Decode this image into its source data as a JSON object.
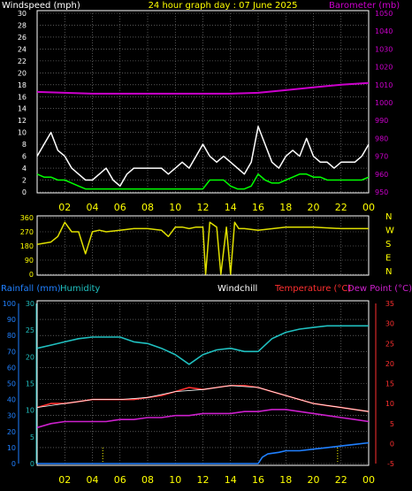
{
  "header": {
    "windspeed_label": "Windspeed (mph)",
    "title": "24 hour graph day : 07 June 2025",
    "barometer_label": "Barometer (mb)"
  },
  "panel3_labels": {
    "rainfall": "Rainfall (mm)",
    "humidity": "Humidity",
    "windchill": "Windchill",
    "temperature": "Temperature (°C)",
    "dewpoint": "Dew Point (°C)"
  },
  "colors": {
    "background": "#000000",
    "axis_yellow": "#ffff00",
    "wind_gust": "#ffffff",
    "wind_avg": "#00ff00",
    "barometer": "#cc00cc",
    "direction": "#e0e000",
    "humidity": "#20c0c0",
    "temperature": "#ff3030",
    "dewpoint": "#cc20cc",
    "windchill": "#ffffff",
    "rainfall": "#2080ff",
    "grid": "#8a8a8a"
  },
  "chart_data": [
    {
      "type": "line",
      "name": "wind-barometer",
      "x_ticks": [
        "02",
        "04",
        "06",
        "08",
        "10",
        "12",
        "14",
        "16",
        "18",
        "20",
        "22",
        "00"
      ],
      "xlim": [
        0,
        24
      ],
      "y_left": {
        "label": "Windspeed (mph)",
        "ticks": [
          0,
          2,
          4,
          6,
          8,
          10,
          12,
          14,
          16,
          18,
          20,
          22,
          24,
          26,
          28,
          30
        ],
        "ylim": [
          0,
          30
        ]
      },
      "y_right": {
        "label": "Barometer (mb)",
        "ticks": [
          950,
          960,
          970,
          980,
          990,
          1000,
          1010,
          1020,
          1030,
          1040,
          1050
        ],
        "ylim": [
          950,
          1050
        ]
      },
      "series": [
        {
          "key": "gust",
          "axis": "left",
          "x": [
            0,
            0.5,
            1,
            1.5,
            2,
            2.5,
            3,
            3.5,
            4,
            4.5,
            5,
            5.5,
            6,
            6.5,
            7,
            7.5,
            8,
            8.5,
            9,
            9.5,
            10,
            10.5,
            11,
            11.5,
            12,
            12.5,
            13,
            13.5,
            14,
            14.5,
            15,
            15.5,
            16,
            16.5,
            17,
            17.5,
            18,
            18.5,
            19,
            19.5,
            20,
            20.5,
            21,
            21.5,
            22,
            22.5,
            23,
            23.5,
            24
          ],
          "y": [
            6,
            8,
            10,
            7,
            6,
            4,
            3,
            2,
            2,
            3,
            4,
            2,
            1,
            3,
            4,
            4,
            4,
            4,
            4,
            3,
            4,
            5,
            4,
            6,
            8,
            6,
            5,
            6,
            5,
            4,
            3,
            5,
            11,
            8,
            5,
            4,
            6,
            7,
            6,
            9,
            6,
            5,
            5,
            4,
            5,
            5,
            5,
            6,
            8
          ]
        },
        {
          "key": "avg",
          "axis": "left",
          "x": [
            0,
            0.5,
            1,
            1.5,
            2,
            2.5,
            3,
            3.5,
            4,
            4.5,
            5,
            5.5,
            6,
            6.5,
            7,
            7.5,
            8,
            8.5,
            9,
            9.5,
            10,
            10.5,
            11,
            11.5,
            12,
            12.5,
            13,
            13.5,
            14,
            14.5,
            15,
            15.5,
            16,
            16.5,
            17,
            17.5,
            18,
            18.5,
            19,
            19.5,
            20,
            20.5,
            21,
            21.5,
            22,
            22.5,
            23,
            23.5,
            24
          ],
          "y": [
            3,
            2.5,
            2.5,
            2,
            2,
            1.5,
            1,
            0.5,
            0.5,
            0.5,
            0.5,
            0.5,
            0.5,
            0.5,
            0.5,
            0.5,
            0.5,
            0.5,
            0.5,
            0.5,
            0.5,
            0.5,
            0.5,
            0.5,
            0.5,
            2,
            2,
            2,
            1,
            0.5,
            0.5,
            1,
            3,
            2,
            1.5,
            1.5,
            2,
            2.5,
            3,
            3,
            2.5,
            2.5,
            2,
            2,
            2,
            2,
            2,
            2,
            2.5
          ]
        },
        {
          "key": "barometer",
          "axis": "right",
          "x": [
            0,
            2,
            4,
            6,
            8,
            10,
            12,
            14,
            16,
            18,
            20,
            22,
            24
          ],
          "y": [
            1006,
            1005.5,
            1005,
            1005,
            1005,
            1005,
            1005,
            1005,
            1005.5,
            1007,
            1008.5,
            1010,
            1011
          ]
        }
      ]
    },
    {
      "type": "line",
      "name": "wind-direction",
      "xlim": [
        0,
        24
      ],
      "y_left": {
        "ticks": [
          0,
          90,
          180,
          270,
          360
        ],
        "ylim": [
          0,
          360
        ]
      },
      "y_right_labels": [
        "N",
        "W",
        "S",
        "E",
        "N"
      ],
      "series": [
        {
          "key": "direction",
          "x": [
            0,
            1,
            1.5,
            2,
            2.5,
            3,
            3.5,
            4,
            4.5,
            5,
            6,
            7,
            8,
            9,
            9.5,
            10,
            10.5,
            11,
            11.5,
            12,
            12.2,
            12.5,
            13,
            13.3,
            13.7,
            14,
            14.3,
            14.6,
            15,
            16,
            18,
            20,
            22,
            24
          ],
          "y": [
            190,
            205,
            240,
            330,
            270,
            270,
            130,
            270,
            280,
            270,
            280,
            290,
            290,
            280,
            240,
            300,
            300,
            290,
            300,
            300,
            0,
            330,
            300,
            0,
            300,
            0,
            330,
            290,
            290,
            280,
            300,
            300,
            290,
            290
          ]
        }
      ]
    },
    {
      "type": "line",
      "name": "temperature-humidity-rain",
      "x_ticks": [
        "02",
        "04",
        "06",
        "08",
        "10",
        "12",
        "14",
        "16",
        "18",
        "20",
        "22",
        "00"
      ],
      "xlim": [
        0,
        24
      ],
      "y_left_outer": {
        "label": "Rainfall (mm)",
        "ticks": [
          0,
          10,
          20,
          30,
          40,
          50,
          60,
          70,
          80,
          90,
          100
        ],
        "ylim": [
          0,
          100
        ]
      },
      "y_left_inner": {
        "label": "Humidity",
        "ticks": [
          0,
          5,
          10,
          15,
          20,
          25,
          30
        ],
        "ylim": [
          0,
          30
        ]
      },
      "y_right": {
        "label": "Temperature (°C)",
        "ticks": [
          -5,
          0,
          5,
          10,
          15,
          20,
          25,
          30,
          35
        ],
        "ylim": [
          -5,
          35
        ]
      },
      "series": [
        {
          "key": "humidity",
          "axis": "rainfall",
          "x": [
            0,
            1,
            2,
            3,
            4,
            5,
            6,
            7,
            8,
            9,
            10,
            11,
            12,
            13,
            14,
            15,
            16,
            17,
            18,
            19,
            20,
            21,
            22,
            23,
            24
          ],
          "y": [
            72,
            74,
            76,
            78,
            79,
            79,
            79,
            76,
            75,
            72,
            68,
            62,
            68,
            71,
            72,
            70,
            70,
            78,
            82,
            84,
            85,
            86,
            86,
            86,
            86
          ]
        },
        {
          "key": "temperature",
          "axis": "temp",
          "x": [
            0,
            1,
            2,
            3,
            4,
            5,
            6,
            7,
            8,
            9,
            10,
            11,
            12,
            13,
            14,
            15,
            16,
            17,
            18,
            19,
            20,
            21,
            22,
            23,
            24
          ],
          "y": [
            9,
            10,
            10,
            10.5,
            11,
            11,
            11,
            11,
            11.5,
            12,
            13,
            14,
            13.5,
            14,
            14.5,
            14.5,
            14,
            13,
            12,
            11,
            10,
            9.5,
            9,
            8.5,
            8
          ]
        },
        {
          "key": "dewpoint",
          "axis": "temp",
          "x": [
            0,
            1,
            2,
            3,
            4,
            5,
            6,
            7,
            8,
            9,
            10,
            11,
            12,
            13,
            14,
            15,
            16,
            17,
            18,
            19,
            20,
            21,
            22,
            23,
            24
          ],
          "y": [
            4,
            5,
            5.5,
            5.5,
            5.5,
            5.5,
            6,
            6,
            6.5,
            6.5,
            7,
            7,
            7.5,
            7.5,
            7.5,
            8,
            8,
            8.5,
            8.5,
            8,
            7.5,
            7,
            6.5,
            6,
            5.5
          ]
        },
        {
          "key": "windchill",
          "axis": "temp",
          "x": [
            0,
            2,
            4,
            6,
            8,
            10,
            12,
            14,
            16,
            18,
            20,
            22,
            24
          ],
          "y": [
            9,
            10,
            11,
            11,
            11.5,
            13,
            13.5,
            14.5,
            14,
            12,
            10,
            9,
            8
          ]
        },
        {
          "key": "rainfall",
          "axis": "rainfall",
          "x": [
            0,
            2,
            4,
            6,
            8,
            10,
            12,
            14,
            16,
            16.3,
            16.7,
            17.5,
            18,
            19,
            20,
            21,
            22,
            23,
            24
          ],
          "y": [
            0,
            0,
            0,
            0,
            0,
            0,
            0,
            0,
            0,
            4,
            6,
            7,
            8,
            8,
            9,
            10,
            11,
            12,
            13
          ]
        }
      ]
    }
  ]
}
